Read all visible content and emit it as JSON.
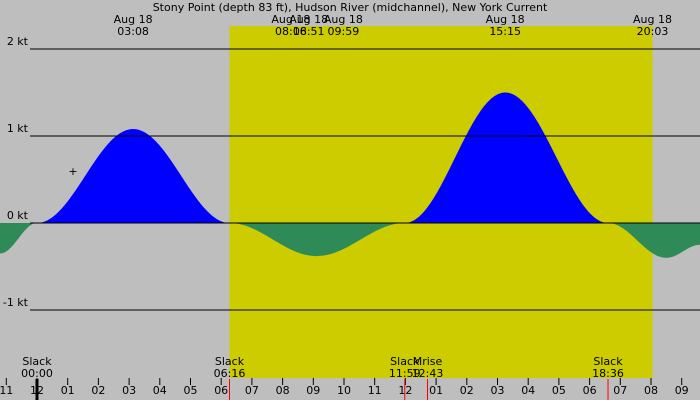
{
  "chart_data": {
    "type": "area",
    "title": "Stony Point (depth 83 ft), Hudson River (midchannel), New York Current",
    "xlabel": "",
    "ylabel": "",
    "x_unit": "hours",
    "xlim": [
      -1.2,
      21.6
    ],
    "ylim": [
      -1.25,
      2.1
    ],
    "y_ticks": [
      {
        "value": 2,
        "label": "2 kt"
      },
      {
        "value": 1,
        "label": "1 kt"
      },
      {
        "value": 0,
        "label": "0 kt"
      },
      {
        "value": -1,
        "label": "-1 kt"
      }
    ],
    "x_ticks": [
      {
        "hour": -1,
        "label": "11"
      },
      {
        "hour": 0,
        "label": "12"
      },
      {
        "hour": 1,
        "label": "01"
      },
      {
        "hour": 2,
        "label": "02"
      },
      {
        "hour": 3,
        "label": "03"
      },
      {
        "hour": 4,
        "label": "04"
      },
      {
        "hour": 5,
        "label": "05"
      },
      {
        "hour": 6,
        "label": "06"
      },
      {
        "hour": 7,
        "label": "07"
      },
      {
        "hour": 8,
        "label": "08"
      },
      {
        "hour": 9,
        "label": "09"
      },
      {
        "hour": 10,
        "label": "10"
      },
      {
        "hour": 11,
        "label": "11"
      },
      {
        "hour": 12,
        "label": "12"
      },
      {
        "hour": 13,
        "label": "01"
      },
      {
        "hour": 14,
        "label": "02"
      },
      {
        "hour": 15,
        "label": "03"
      },
      {
        "hour": 16,
        "label": "04"
      },
      {
        "hour": 17,
        "label": "05"
      },
      {
        "hour": 18,
        "label": "06"
      },
      {
        "hour": 19,
        "label": "07"
      },
      {
        "hour": 20,
        "label": "08"
      },
      {
        "hour": 21,
        "label": "09"
      }
    ],
    "daylight": {
      "start": 6.27,
      "end": 20.05
    },
    "top_events": [
      {
        "hour": 3.13,
        "date": "Aug 18",
        "time": "03:08"
      },
      {
        "hour": 8.27,
        "date": "Aug 18",
        "time": "08:16"
      },
      {
        "hour": 8.85,
        "date": "Aug 18",
        "time": "08:51"
      },
      {
        "hour": 9.98,
        "date": "Aug 18",
        "time": "09:59"
      },
      {
        "hour": 15.25,
        "date": "Aug 18",
        "time": "15:15"
      },
      {
        "hour": 20.05,
        "date": "Aug 18",
        "time": "20:03"
      }
    ],
    "bottom_events": [
      {
        "hour": 0.0,
        "label": "Slack",
        "time": "00:00"
      },
      {
        "hour": 6.27,
        "label": "Slack",
        "time": "06:16"
      },
      {
        "hour": 11.98,
        "label": "Slack",
        "time": "11:59"
      },
      {
        "hour": 12.72,
        "label": "Mrise",
        "time": "12:43"
      },
      {
        "hour": 18.6,
        "label": "Slack",
        "time": "18:36"
      }
    ],
    "series": [
      {
        "type": "flood_ebb",
        "x": [
          -1.2,
          0.0,
          3.13,
          6.27,
          9.1,
          11.98,
          15.25,
          18.6,
          20.5,
          21.6
        ],
        "y": [
          -0.35,
          0.0,
          1.08,
          0.0,
          -0.38,
          0.0,
          1.5,
          0.0,
          -0.4,
          -0.25
        ],
        "flood_color": "#0000ff",
        "ebb_color": "#2e8b57"
      }
    ],
    "colors": {
      "night": "#bebebe",
      "daylight": "#cccc00",
      "tick_marker": "#ff0000"
    }
  }
}
